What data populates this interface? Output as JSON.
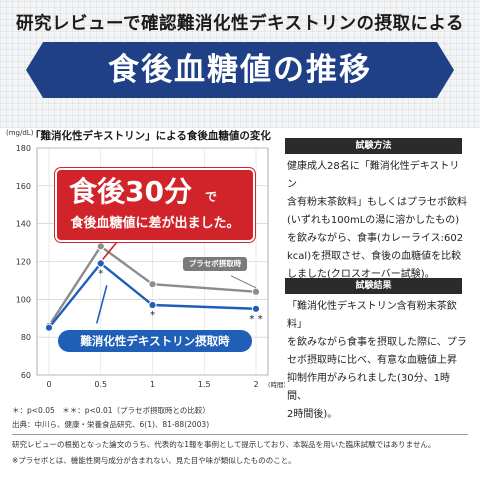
{
  "header": {
    "subtitle": "研究レビューで確認難消化性デキストリンの摂取による",
    "title": "食後血糖値の推移"
  },
  "chart_data": {
    "type": "line",
    "title": "「難消化性デキストリン」による食後血糖値の変化",
    "ylabel": "(mg/dL)",
    "xlabel": "(時間)",
    "ylim": [
      60,
      180
    ],
    "yticks": [
      60,
      80,
      100,
      120,
      140,
      160,
      180
    ],
    "x": [
      0,
      0.5,
      1,
      2
    ],
    "xticklabels": [
      "0",
      "0.5",
      "1",
      "1.5",
      "2"
    ],
    "grid": true,
    "series": [
      {
        "name": "プラセボ摂取時",
        "color": "#8c8c8c",
        "values": [
          86,
          128,
          108,
          104
        ]
      },
      {
        "name": "難消化性デキストリン摂取時",
        "color": "#1f5fb8",
        "values": [
          85,
          119,
          97,
          95
        ]
      }
    ],
    "significance_marks": [
      "*",
      "*",
      "* *"
    ]
  },
  "callouts": {
    "big": "食後30分",
    "small": "で",
    "line2": "食後血糖値に差が出ました。",
    "placebo": "プラセボ摂取時",
    "dextrin": "難消化性デキストリン摂取時"
  },
  "method": {
    "heading": "試験方法",
    "lines": [
      "健康成人28名に「難消化性デキストリン",
      "含有粉末茶飲料」もしくはプラセボ飲料",
      "(いずれも100mLの湯に溶かしたもの)",
      "を飲みながら、食事(カレーライス:602",
      "kcal)を摂取させ、食後の血糖値を比較",
      "しました(クロスオーバー試験)。"
    ]
  },
  "result": {
    "heading": "試験結果",
    "lines": [
      "「難消化性デキストリン含有粉末茶飲料」",
      "を飲みながら食事を摂取した際に、プラ",
      "セボ摂取時に比べ、有意な血糖値上昇",
      "抑制作用がみられました(30分、1時間、",
      "2時間後)。"
    ]
  },
  "notes": {
    "line1": "＊：p<0.05　＊＊：p<0.01（プラセボ摂取時との比較）",
    "line2": "出典：中川ら、健康・栄養食品研究、6(1)、81-88(2003)"
  },
  "footer": {
    "line1": "研究レビューの根拠となった論文のうち、代表的な1報を事例として提示しており、本製品を用いた臨床試験ではありません。",
    "line2": "※プラセボとは、機能性関与成分が含まれない、見た目や味が類似したもののこと。"
  }
}
